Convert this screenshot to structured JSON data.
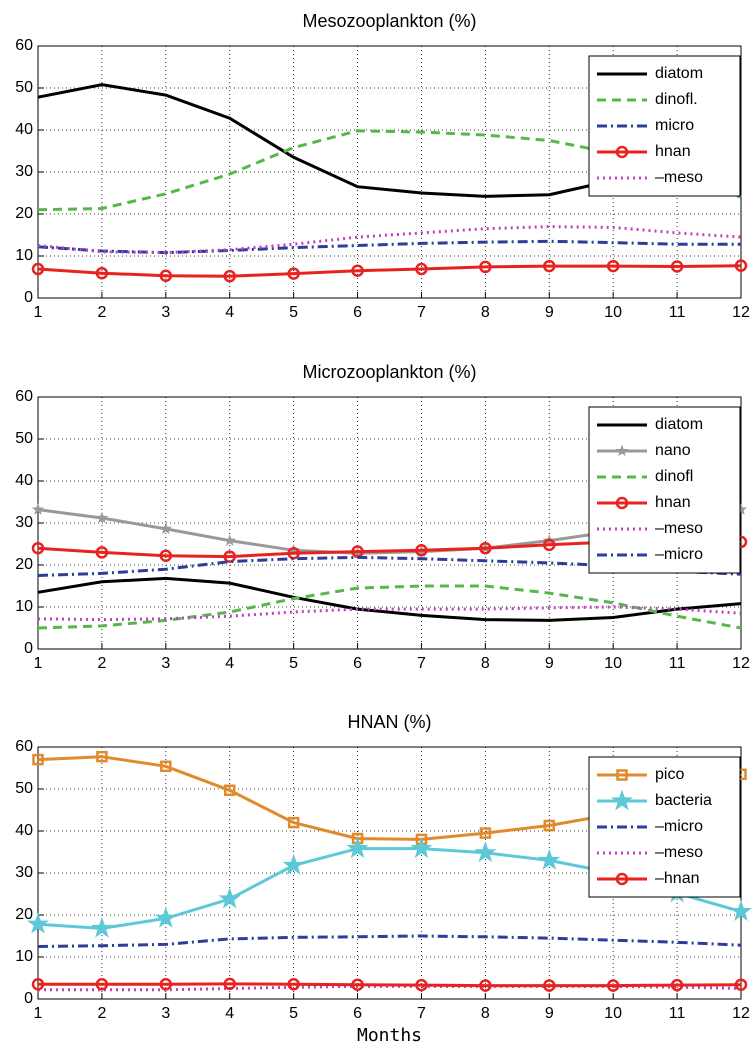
{
  "chart_data": [
    {
      "type": "line",
      "title": "Mesozooplankton (%)",
      "xlim": [
        1,
        12
      ],
      "xticks": [
        1,
        2,
        3,
        4,
        5,
        6,
        7,
        8,
        9,
        10,
        11,
        12
      ],
      "ylim": [
        0,
        60
      ],
      "yticks": [
        0,
        10,
        20,
        30,
        40,
        50,
        60
      ],
      "grid": true,
      "legend": "upper right",
      "x": [
        1,
        2,
        3,
        4,
        5,
        6,
        7,
        8,
        9,
        10,
        11,
        12
      ],
      "series": [
        {
          "name": "diatom",
          "color": "#000000",
          "linestyle": "solid",
          "values": [
            47.8,
            50.8,
            48.3,
            42.8,
            33.5,
            26.5,
            25.0,
            24.2,
            24.6,
            28,
            33,
            41
          ]
        },
        {
          "name": "dinofl.",
          "color": "#55b848",
          "linestyle": "dashed",
          "values": [
            21,
            21.3,
            24.8,
            29.5,
            35.8,
            39.8,
            39.5,
            38.8,
            37.5,
            34.5,
            30,
            24
          ]
        },
        {
          "name": "micro",
          "color": "#2d3e9a",
          "linestyle": "dashdot",
          "values": [
            12.2,
            11.2,
            10.8,
            11.3,
            12,
            12.5,
            13,
            13.3,
            13.5,
            13.2,
            12.8,
            12.8
          ]
        },
        {
          "name": "hnan",
          "color": "#e8231f",
          "linestyle": "solid",
          "marker": "o",
          "values": [
            6.9,
            5.9,
            5.3,
            5.2,
            5.8,
            6.5,
            6.9,
            7.4,
            7.6,
            7.6,
            7.5,
            7.7
          ]
        },
        {
          "name": "–meso",
          "color": "#c040c0",
          "linestyle": "dotted",
          "values": [
            12.5,
            11,
            10.8,
            11.5,
            12.8,
            14.5,
            15.5,
            16.5,
            17,
            16.8,
            15.5,
            14.5
          ]
        }
      ]
    },
    {
      "type": "line",
      "title": "Microzooplankton (%)",
      "xlim": [
        1,
        12
      ],
      "xticks": [
        1,
        2,
        3,
        4,
        5,
        6,
        7,
        8,
        9,
        10,
        11,
        12
      ],
      "ylim": [
        0,
        60
      ],
      "yticks": [
        0,
        10,
        20,
        30,
        40,
        50,
        60
      ],
      "grid": true,
      "legend": "upper right",
      "x": [
        1,
        2,
        3,
        4,
        5,
        6,
        7,
        8,
        9,
        10,
        11,
        12
      ],
      "series": [
        {
          "name": "diatom",
          "color": "#000000",
          "linestyle": "solid",
          "values": [
            13.5,
            16,
            16.8,
            15.7,
            12.3,
            9.5,
            8,
            7,
            6.8,
            7.5,
            9.5,
            10.8
          ]
        },
        {
          "name": "nano",
          "color": "#999999",
          "linestyle": "solid",
          "marker": "*",
          "values": [
            33.2,
            31.2,
            28.6,
            25.8,
            23.5,
            22.8,
            23.2,
            24,
            25.8,
            28,
            30.5,
            33.2
          ]
        },
        {
          "name": "dinofl",
          "color": "#55b848",
          "linestyle": "dashed",
          "values": [
            5,
            5.5,
            6.8,
            8.8,
            12,
            14.5,
            15,
            15,
            13.3,
            11,
            7.8,
            5
          ]
        },
        {
          "name": "hnan",
          "color": "#e8231f",
          "linestyle": "solid",
          "marker": "o",
          "values": [
            24,
            23,
            22.2,
            22,
            22.8,
            23.2,
            23.5,
            24,
            24.8,
            25.5,
            25.5,
            25.5
          ]
        },
        {
          "name": "–meso",
          "color": "#c040c0",
          "linestyle": "dotted",
          "values": [
            7.2,
            7,
            7.2,
            7.8,
            8.8,
            9.5,
            9.5,
            9.5,
            9.8,
            10,
            9.5,
            8.5
          ]
        },
        {
          "name": "–micro",
          "color": "#2d3e9a",
          "linestyle": "dashdot",
          "values": [
            17.5,
            18,
            19,
            20.8,
            21.5,
            21.8,
            21.5,
            21,
            20.5,
            19.8,
            18.5,
            17.8
          ]
        }
      ]
    },
    {
      "type": "line",
      "title": "HNAN (%)",
      "xlabel": "Months",
      "xlim": [
        1,
        12
      ],
      "xticks": [
        1,
        2,
        3,
        4,
        5,
        6,
        7,
        8,
        9,
        10,
        11,
        12
      ],
      "ylim": [
        0,
        60
      ],
      "yticks": [
        0,
        10,
        20,
        30,
        40,
        50,
        60
      ],
      "grid": true,
      "legend": "upper right",
      "x": [
        1,
        2,
        3,
        4,
        5,
        6,
        7,
        8,
        9,
        10,
        11,
        12
      ],
      "series": [
        {
          "name": "pico",
          "color": "#e08a2c",
          "linestyle": "solid",
          "marker": "s",
          "values": [
            57,
            57.7,
            55.4,
            49.7,
            42,
            38.2,
            38,
            39.5,
            41.3,
            44,
            48.5,
            53.5
          ]
        },
        {
          "name": "bacteria",
          "color": "#5cc8d8",
          "linestyle": "solid",
          "marker": "p",
          "values": [
            17.8,
            16.8,
            19.2,
            23.8,
            31.8,
            35.8,
            35.8,
            34.8,
            33,
            30,
            25.2,
            20.8
          ]
        },
        {
          "name": "–micro",
          "color": "#2d3e9a",
          "linestyle": "dashdot",
          "values": [
            12.5,
            12.7,
            13,
            14.3,
            14.7,
            14.8,
            15,
            14.8,
            14.5,
            14,
            13.5,
            12.8
          ]
        },
        {
          "name": "–meso",
          "color": "#c040c0",
          "linestyle": "dotted",
          "values": [
            2.2,
            2.2,
            2.2,
            2.5,
            2.8,
            3,
            3,
            3,
            3,
            3,
            2.8,
            2.5
          ]
        },
        {
          "name": "–hnan",
          "color": "#e8231f",
          "linestyle": "solid",
          "marker": "o",
          "values": [
            3.5,
            3.5,
            3.5,
            3.6,
            3.5,
            3.4,
            3.3,
            3.2,
            3.2,
            3.2,
            3.3,
            3.4
          ]
        }
      ]
    }
  ]
}
